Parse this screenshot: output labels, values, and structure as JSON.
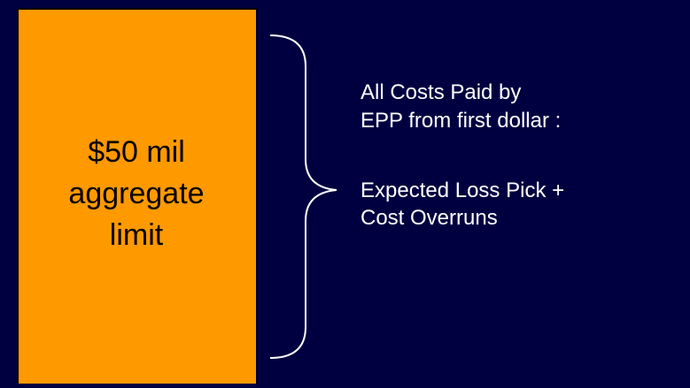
{
  "box": {
    "lines": [
      "$50 mil",
      "aggregate",
      "limit"
    ]
  },
  "description": {
    "first": [
      "All Costs Paid by",
      "EPP from first dollar :"
    ],
    "second": [
      "Expected Loss Pick +",
      "Cost Overruns"
    ]
  }
}
